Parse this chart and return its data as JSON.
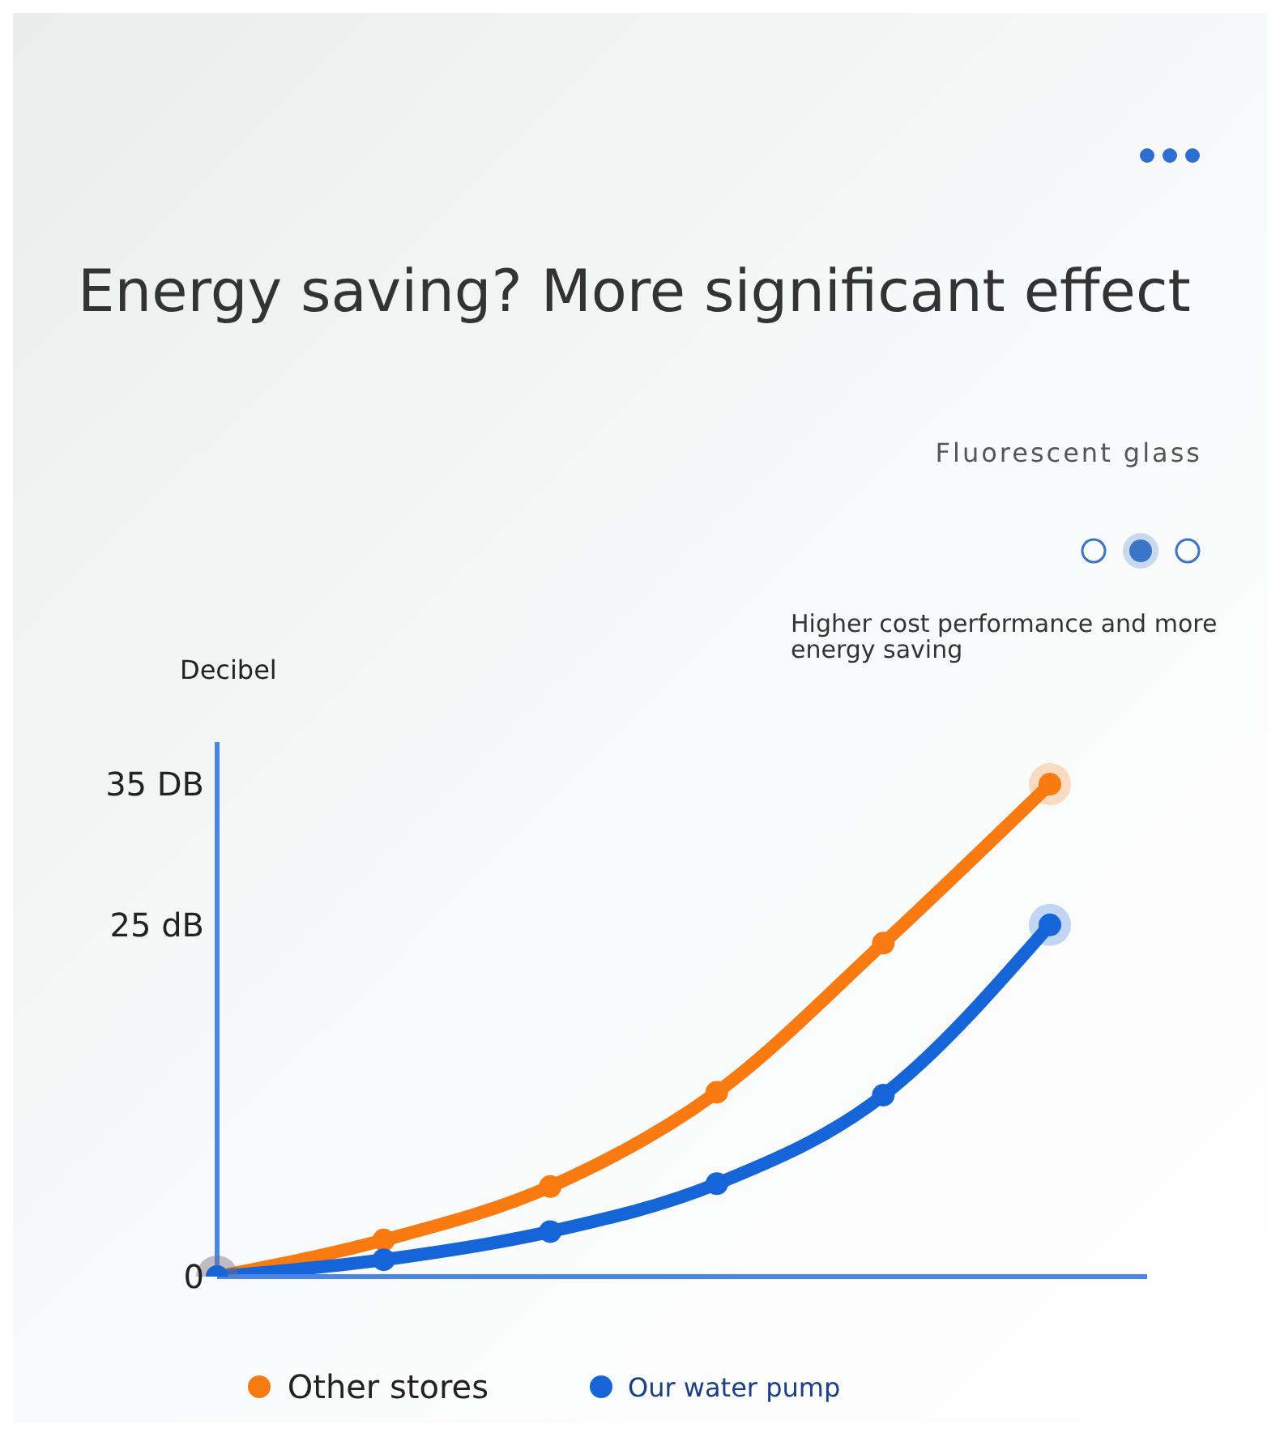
{
  "chart_data": {
    "type": "line",
    "title": "Energy saving? More significant effect",
    "subtitle": "Fluorescent glass",
    "annotations": [
      "Higher cost performance and more energy saving"
    ],
    "ylabel": "Decibel",
    "categories": [
      null,
      null,
      null,
      null,
      null,
      null
    ],
    "series": [
      {
        "name": "Other stores",
        "color": "#f97a10",
        "values": [
          0,
          2.6,
          6.4,
          13.1,
          23.7,
          35
        ]
      },
      {
        "name": "Our water pump",
        "color": "#1565d8",
        "values": [
          0,
          1.2,
          3.2,
          6.6,
          12.9,
          25
        ]
      }
    ],
    "ylim": [
      0,
      38
    ],
    "yticks": [
      0,
      {
        "value": 25,
        "label": "25 dB"
      },
      {
        "value": 35,
        "label": "35 DB"
      }
    ],
    "tick_labels": "y",
    "grid": false,
    "legend": "bottom",
    "marker": "circle",
    "line_style": "solid"
  }
}
